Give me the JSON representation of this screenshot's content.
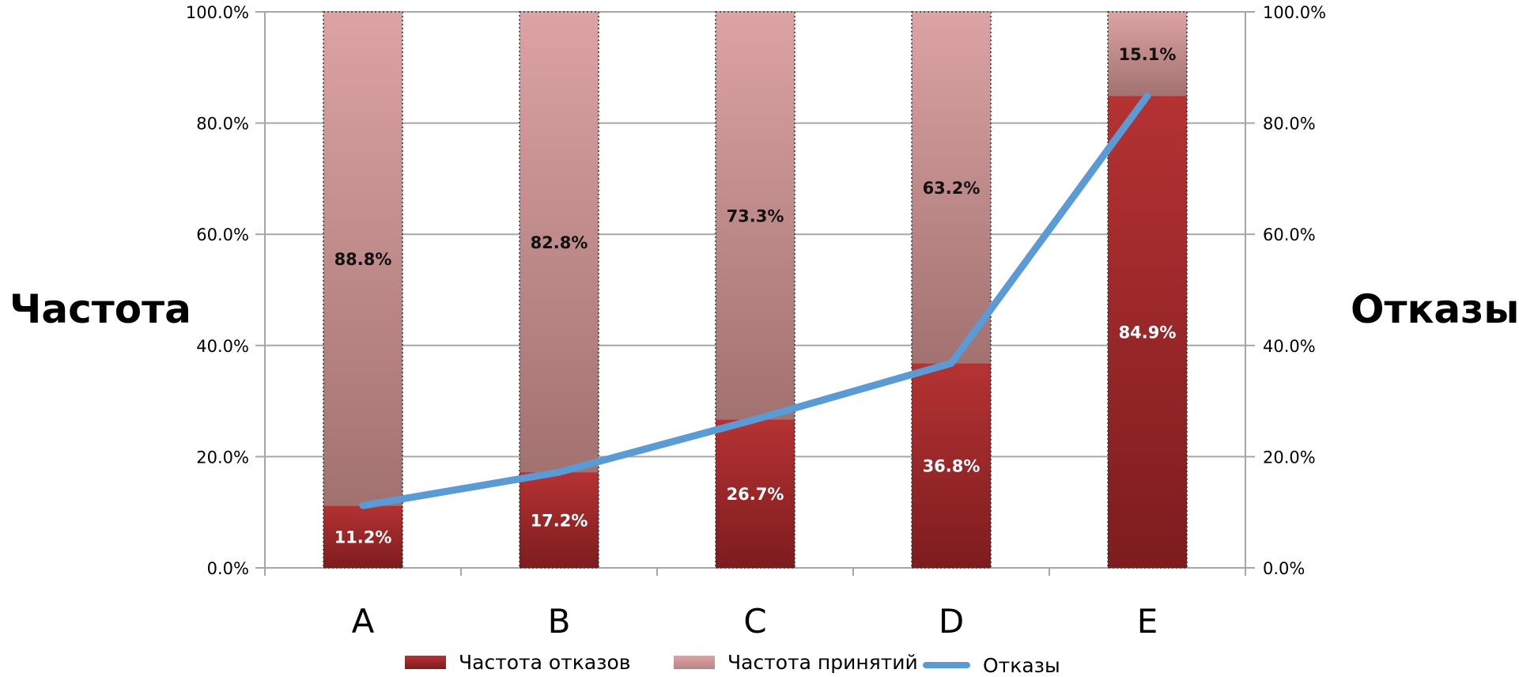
{
  "chart_data": {
    "type": "bar",
    "stacked": true,
    "categories": [
      "A",
      "B",
      "C",
      "D",
      "E"
    ],
    "series": [
      {
        "name": "Частота отказов",
        "kind": "bar",
        "values": [
          11.2,
          17.2,
          26.7,
          36.8,
          84.9
        ],
        "labels": [
          "11.2%",
          "17.2%",
          "26.7%",
          "36.8%",
          "84.9%"
        ],
        "color": "#a82a2b"
      },
      {
        "name": "Частота принятий",
        "kind": "bar",
        "values": [
          88.8,
          82.8,
          73.3,
          63.2,
          15.1
        ],
        "labels": [
          "88.8%",
          "82.8%",
          "73.3%",
          "63.2%",
          "15.1%"
        ],
        "color": "#dba1a2"
      },
      {
        "name": "Отказы",
        "kind": "line",
        "values": [
          11.2,
          17.2,
          26.7,
          36.8,
          84.9
        ],
        "color": "#5b9bd5"
      }
    ],
    "ylabel_left": "Частота",
    "ylabel_right": "Отказы",
    "ylim": [
      0,
      100
    ],
    "y_ticks": [
      "0.0%",
      "20.0%",
      "40.0%",
      "60.0%",
      "80.0%",
      "100.0%"
    ],
    "y2_ticks": [
      "0.0%",
      "20.0%",
      "40.0%",
      "60.0%",
      "80.0%",
      "100.0%"
    ],
    "grid": true,
    "legend_position": "bottom"
  }
}
